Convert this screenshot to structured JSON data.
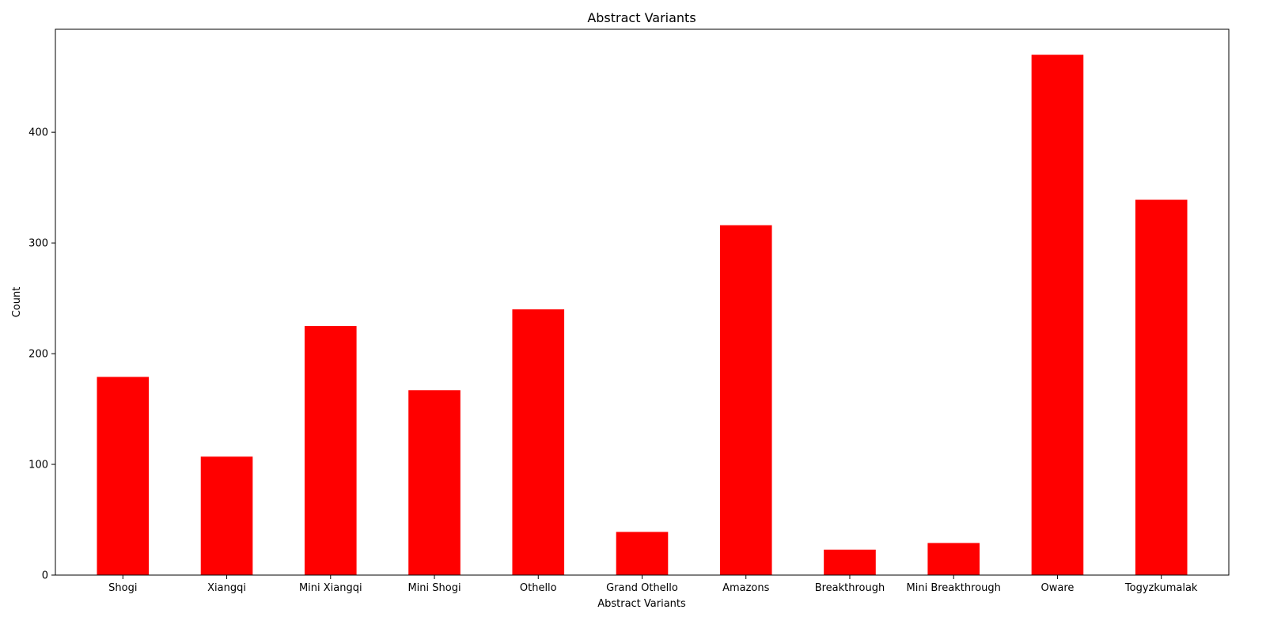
{
  "chart_data": {
    "type": "bar",
    "title": "Abstract Variants",
    "xlabel": "Abstract Variants",
    "ylabel": "Count",
    "categories": [
      "Shogi",
      "Xiangqi",
      "Mini Xiangqi",
      "Mini Shogi",
      "Othello",
      "Grand Othello",
      "Amazons",
      "Breakthrough",
      "Mini Breakthrough",
      "Oware",
      "Togyzkumalak"
    ],
    "values": [
      179,
      107,
      225,
      167,
      240,
      39,
      316,
      23,
      29,
      470,
      339
    ],
    "ylim": [
      0,
      493
    ],
    "yticks": [
      0,
      100,
      200,
      300,
      400
    ],
    "bar_color": "#ff0000",
    "grid": false,
    "legend": "none"
  }
}
